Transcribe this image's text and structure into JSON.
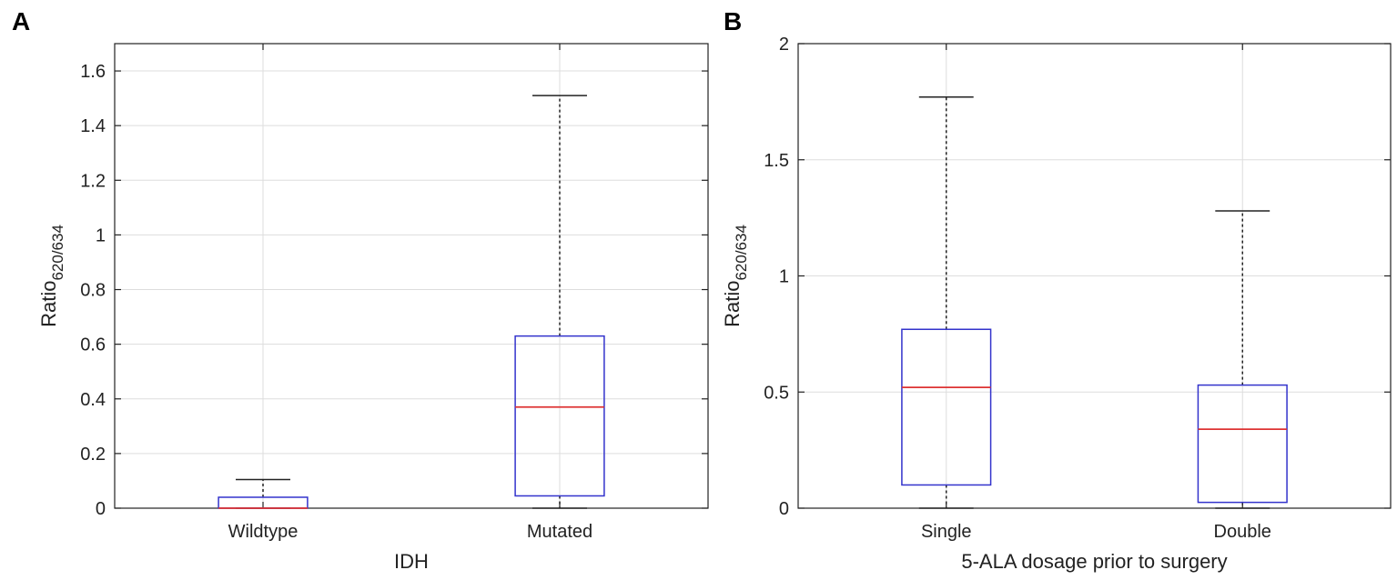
{
  "chart_data": [
    {
      "panel": "A",
      "type": "box",
      "xlabel": "IDH",
      "ylabel": {
        "base": "Ratio",
        "subscript": "620/634"
      },
      "ylim": [
        0,
        1.7
      ],
      "yticks": [
        0,
        0.2,
        0.4,
        0.6,
        0.8,
        1,
        1.2,
        1.4,
        1.6
      ],
      "ytick_labels": [
        "0",
        "0.2",
        "0.4",
        "0.6",
        "0.8",
        "1",
        "1.2",
        "1.4",
        "1.6"
      ],
      "grid": true,
      "categories": [
        "Wildtype",
        "Mutated"
      ],
      "boxes": [
        {
          "label": "Wildtype",
          "whisker_low": 0,
          "q1": 0,
          "median": 0,
          "q3": 0.04,
          "whisker_high": 0.105
        },
        {
          "label": "Mutated",
          "whisker_low": 0,
          "q1": 0.045,
          "median": 0.37,
          "q3": 0.63,
          "whisker_high": 1.51
        }
      ]
    },
    {
      "panel": "B",
      "type": "box",
      "xlabel": "5-ALA dosage prior to surgery",
      "ylabel": {
        "base": "Ratio",
        "subscript": "620/634"
      },
      "ylim": [
        0,
        2
      ],
      "yticks": [
        0,
        0.5,
        1,
        1.5,
        2
      ],
      "ytick_labels": [
        "0",
        "0.5",
        "1",
        "1.5",
        "2"
      ],
      "grid": true,
      "categories": [
        "Single",
        "Double"
      ],
      "boxes": [
        {
          "label": "Single",
          "whisker_low": 0,
          "q1": 0.1,
          "median": 0.52,
          "q3": 0.77,
          "whisker_high": 1.77
        },
        {
          "label": "Double",
          "whisker_low": 0,
          "q1": 0.025,
          "median": 0.34,
          "q3": 0.53,
          "whisker_high": 1.28
        }
      ]
    }
  ],
  "colors": {
    "box": "#3333cc",
    "median": "#dd3333",
    "whisker": "#222222",
    "grid": "#dddddd",
    "axis": "#222222"
  }
}
